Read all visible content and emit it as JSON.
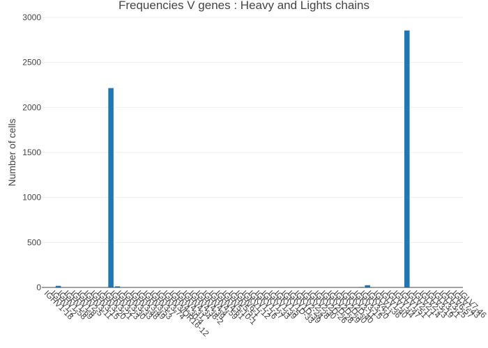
{
  "chart_data": {
    "type": "bar",
    "title": "Frequencies V genes : Heavy and Lights chains",
    "xlabel": "",
    "ylabel": "Number of cells",
    "ylim": [
      0,
      3000
    ],
    "yticks": [
      0,
      500,
      1000,
      1500,
      2000,
      2500,
      3000
    ],
    "grid": true,
    "bar_color": "#1f77b4",
    "categories": [
      "IGHV1-18",
      "IGHV1-2",
      "IGHV1-58",
      "IGHV1-69",
      "IGHV1-8",
      "IGHV2-5",
      "IGHV3-11",
      "IGHV3-15",
      "IGHV3-20",
      "IGHV3-21",
      "IGHV3-23",
      "IGHV3-30",
      "IGHV3-33",
      "IGHV3-48",
      "IGHV3-49",
      "IGHV3-53",
      "IGHV3-7",
      "IGHV3-74",
      "IGHV3/OR16-12",
      "IGHV4-30-4",
      "IGHV4-31",
      "IGHV4-34",
      "IGHV4-38-2",
      "IGHV4-39",
      "IGHV4-4",
      "IGHV4-59",
      "IGHV4-61",
      "IGHV5-10-1",
      "IGHV5-51",
      "IGHV6-1",
      "IGKV1-12",
      "IGKV1-16",
      "IGKV1-27",
      "IGKV1-33",
      "IGKV1-39",
      "IGKV1-5",
      "IGKV1D-33",
      "IGKV1D-39",
      "IGKV2-24",
      "IGKV2-28",
      "IGKV2-30",
      "IGKV2D-26",
      "IGKV2D-28",
      "IGKV2D-29",
      "IGKV2D-30",
      "IGKV2D-40",
      "IGKV3-11",
      "IGKV3-15",
      "IGKV3-20",
      "IGKV4-1",
      "IGLV1-36",
      "IGLV1-40",
      "IGLV1-44",
      "IGLV1-47",
      "IGLV1-51",
      "IGLV2-11",
      "IGLV2-14",
      "IGLV2-23",
      "IGLV3-19",
      "IGLV3-21",
      "IGLV3-25",
      "IGLV6-57",
      "IGLV7-43",
      "IGLV7-46"
    ],
    "values": [
      3,
      2,
      18,
      2,
      2,
      2,
      2,
      2,
      3,
      2,
      2215,
      12,
      4,
      2,
      2,
      2,
      2,
      2,
      2,
      2,
      4,
      2,
      4,
      2,
      2,
      2,
      2,
      2,
      2,
      2,
      2,
      2,
      2,
      2,
      2,
      2,
      4,
      2,
      2,
      2,
      2,
      2,
      2,
      2,
      2,
      2,
      2,
      2,
      5,
      25,
      2,
      2,
      2,
      2,
      2,
      2855,
      2,
      2,
      2,
      2,
      3,
      2,
      2,
      2
    ]
  }
}
